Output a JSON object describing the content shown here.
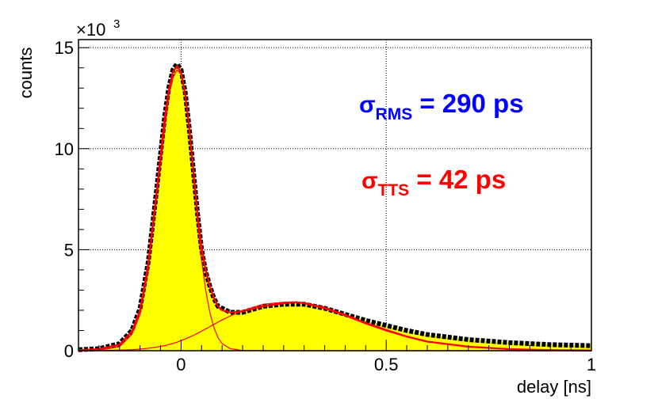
{
  "chart_data": {
    "type": "area",
    "xlabel": "delay [ns]",
    "ylabel": "counts",
    "y_multiplier_label": "×10",
    "y_multiplier_exp": "3",
    "xlim": [
      -0.25,
      1.0
    ],
    "ylim": [
      0,
      15.4
    ],
    "grid": true,
    "x_ticks": [
      {
        "value": 0,
        "label": "0"
      },
      {
        "value": 0.5,
        "label": "0.5"
      },
      {
        "value": 1,
        "label": "1"
      }
    ],
    "y_ticks": [
      {
        "value": 0,
        "label": "0"
      },
      {
        "value": 5,
        "label": "5"
      },
      {
        "value": 10,
        "label": "10"
      },
      {
        "value": 15,
        "label": "15"
      }
    ],
    "histogram": {
      "color": "#ffff00",
      "marker_color": "#000000",
      "x": [
        -0.25,
        -0.2,
        -0.15,
        -0.12,
        -0.1,
        -0.08,
        -0.06,
        -0.04,
        -0.03,
        -0.02,
        -0.01,
        0.0,
        0.01,
        0.02,
        0.03,
        0.04,
        0.05,
        0.06,
        0.07,
        0.08,
        0.09,
        0.1,
        0.12,
        0.15,
        0.2,
        0.25,
        0.3,
        0.35,
        0.4,
        0.45,
        0.5,
        0.55,
        0.6,
        0.7,
        0.8,
        0.9,
        1.0
      ],
      "y": [
        0.05,
        0.1,
        0.35,
        1.0,
        2.1,
        4.4,
        7.9,
        11.6,
        13.0,
        13.9,
        14.2,
        13.9,
        12.8,
        11.0,
        8.9,
        6.8,
        5.0,
        3.9,
        3.2,
        2.6,
        2.2,
        2.1,
        1.9,
        1.9,
        2.2,
        2.3,
        2.3,
        2.1,
        1.8,
        1.5,
        1.25,
        1.0,
        0.8,
        0.55,
        0.4,
        0.3,
        0.25
      ]
    },
    "fit": {
      "color": "#ff0000",
      "x": [
        -0.25,
        -0.2,
        -0.15,
        -0.12,
        -0.1,
        -0.08,
        -0.06,
        -0.04,
        -0.03,
        -0.02,
        -0.01,
        0.0,
        0.01,
        0.02,
        0.03,
        0.04,
        0.05,
        0.06,
        0.07,
        0.08,
        0.09,
        0.1,
        0.12,
        0.15,
        0.2,
        0.25,
        0.28,
        0.3,
        0.35,
        0.4,
        0.45,
        0.5,
        0.55,
        0.6,
        0.7,
        0.8,
        0.9,
        1.0
      ],
      "total": [
        0.03,
        0.08,
        0.3,
        0.95,
        2.0,
        4.3,
        7.8,
        11.5,
        12.9,
        13.8,
        14.1,
        13.8,
        12.7,
        11.0,
        8.9,
        6.8,
        5.1,
        4.0,
        3.2,
        2.6,
        2.2,
        2.0,
        1.9,
        1.95,
        2.2,
        2.35,
        2.4,
        2.35,
        2.1,
        1.75,
        1.35,
        1.0,
        0.7,
        0.45,
        0.2,
        0.08,
        0.03,
        0.01
      ],
      "component_peak": [
        0.0,
        0.02,
        0.2,
        0.8,
        1.8,
        4.0,
        7.5,
        11.0,
        12.6,
        13.5,
        13.9,
        13.7,
        12.7,
        10.9,
        8.7,
        6.5,
        4.5,
        3.0,
        1.9,
        1.15,
        0.65,
        0.35,
        0.1,
        0.01,
        0.0,
        0.0,
        0.0,
        0.0,
        0.0,
        0.0,
        0.0,
        0.0,
        0.0,
        0.0,
        0.0,
        0.0,
        0.0,
        0.0
      ],
      "component_tail": [
        0.0,
        0.01,
        0.03,
        0.05,
        0.08,
        0.12,
        0.18,
        0.25,
        0.3,
        0.36,
        0.42,
        0.5,
        0.58,
        0.67,
        0.76,
        0.86,
        0.97,
        1.08,
        1.19,
        1.3,
        1.41,
        1.52,
        1.72,
        1.98,
        2.3,
        2.4,
        2.42,
        2.38,
        2.15,
        1.8,
        1.4,
        1.05,
        0.72,
        0.47,
        0.18,
        0.06,
        0.02,
        0.0
      ]
    },
    "annotations": [
      {
        "symbol": "σ",
        "subscript": "RMS",
        "text": " = 290 ps",
        "color": "#0000ff"
      },
      {
        "symbol": "σ",
        "subscript": "TTS",
        "text": " = 42 ps",
        "color": "#ff0000"
      }
    ]
  }
}
